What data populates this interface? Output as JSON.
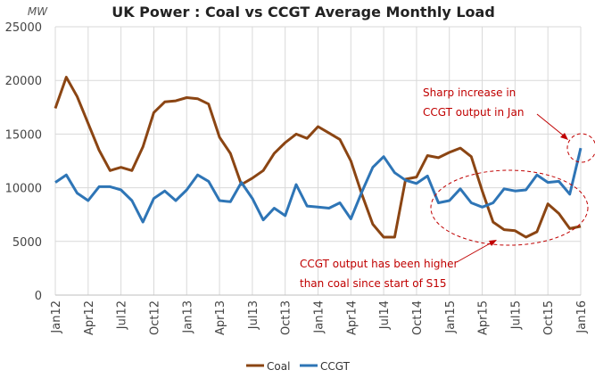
{
  "chart_data": {
    "type": "line",
    "title": "UK Power : Coal vs CCGT Average Monthly Load",
    "ylabel": "MW",
    "xlabel": "",
    "ylim": [
      0,
      25000
    ],
    "yticks": [
      0,
      5000,
      10000,
      15000,
      20000,
      25000
    ],
    "grid": true,
    "legend_position": "bottom",
    "x": [
      "Jan12",
      "Feb12",
      "Mar12",
      "Apr12",
      "May12",
      "Jun12",
      "Jul12",
      "Aug12",
      "Sep12",
      "Oct12",
      "Nov12",
      "Dec12",
      "Jan13",
      "Feb13",
      "Mar13",
      "Apr13",
      "May13",
      "Jun13",
      "Jul13",
      "Aug13",
      "Sep13",
      "Oct13",
      "Nov13",
      "Dec13",
      "Jan14",
      "Feb14",
      "Mar14",
      "Apr14",
      "May14",
      "Jun14",
      "Jul14",
      "Aug14",
      "Sep14",
      "Oct14",
      "Nov14",
      "Dec14",
      "Jan15",
      "Feb15",
      "Mar15",
      "Apr15",
      "May15",
      "Jun15",
      "Jul15",
      "Aug15",
      "Sep15",
      "Oct15",
      "Nov15",
      "Dec15",
      "Jan16"
    ],
    "xtick_labels": [
      "Jan12",
      "Apr12",
      "Jul12",
      "Oct12",
      "Jan13",
      "Apr13",
      "Jul13",
      "Oct13",
      "Jan14",
      "Apr14",
      "Jul14",
      "Oct14",
      "Jan15",
      "Apr15",
      "Jul15",
      "Oct15",
      "Jan16"
    ],
    "series": [
      {
        "name": "Coal",
        "color": "#8B4513",
        "values": [
          17400,
          20300,
          18500,
          16000,
          13500,
          11600,
          11900,
          11600,
          13800,
          17000,
          18000,
          18100,
          18400,
          18300,
          17800,
          14700,
          13200,
          10300,
          10900,
          11600,
          13200,
          14200,
          15000,
          14600,
          15700,
          15100,
          14500,
          12500,
          9400,
          6600,
          5400,
          5400,
          10800,
          11000,
          13000,
          12800,
          13300,
          13700,
          12900,
          9700,
          6800,
          6100,
          6000,
          5400,
          5900,
          8500,
          7600,
          6200,
          6400
        ]
      },
      {
        "name": "CCGT",
        "color": "#2E75B6",
        "values": [
          10500,
          11200,
          9500,
          8800,
          10100,
          10100,
          9800,
          8800,
          6800,
          9000,
          9700,
          8800,
          9800,
          11200,
          10600,
          8800,
          8700,
          10500,
          9000,
          7000,
          8100,
          7400,
          10300,
          8300,
          8200,
          8100,
          8600,
          7100,
          9600,
          11900,
          12900,
          11400,
          10700,
          10400,
          11100,
          8600,
          8800,
          9900,
          8600,
          8200,
          8600,
          9900,
          9700,
          9800,
          11200,
          10500,
          10600,
          9400,
          13700
        ]
      }
    ],
    "annotations": [
      {
        "lines": [
          "Sharp increase in",
          "CCGT output in Jan"
        ],
        "color": "#C00000"
      },
      {
        "lines": [
          "CCGT output has been higher",
          "than coal since start of S15"
        ],
        "color": "#C00000"
      }
    ]
  }
}
